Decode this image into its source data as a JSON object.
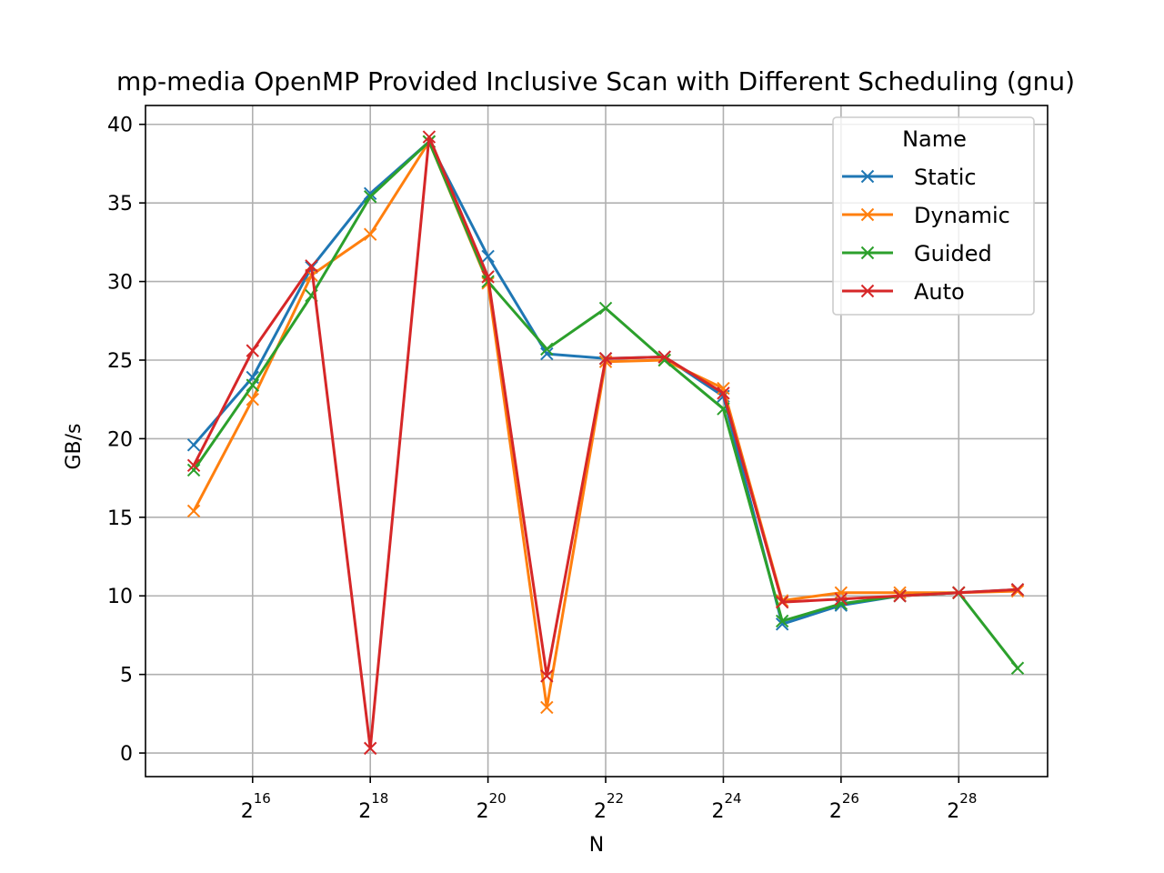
{
  "chart_data": {
    "type": "line",
    "title": "mp-media OpenMP Provided Inclusive Scan with Different Scheduling (gnu)",
    "xlabel": "N",
    "ylabel": "GB/s",
    "x_scale": "log2",
    "x_exponents": [
      15,
      16,
      17,
      18,
      19,
      20,
      21,
      22,
      23,
      24,
      25,
      26,
      27,
      28,
      29
    ],
    "xlim_exponents": [
      14.18,
      29.51
    ],
    "ylim": [
      -1.5,
      41.2
    ],
    "x_ticks": [
      {
        "base": "2",
        "exp": "16",
        "value": 16
      },
      {
        "base": "2",
        "exp": "18",
        "value": 18
      },
      {
        "base": "2",
        "exp": "20",
        "value": 20
      },
      {
        "base": "2",
        "exp": "22",
        "value": 22
      },
      {
        "base": "2",
        "exp": "24",
        "value": 24
      },
      {
        "base": "2",
        "exp": "26",
        "value": 26
      },
      {
        "base": "2",
        "exp": "28",
        "value": 28
      }
    ],
    "y_ticks": [
      {
        "label": "0",
        "value": 0
      },
      {
        "label": "5",
        "value": 5
      },
      {
        "label": "10",
        "value": 10
      },
      {
        "label": "15",
        "value": 15
      },
      {
        "label": "20",
        "value": 20
      },
      {
        "label": "25",
        "value": 25
      },
      {
        "label": "30",
        "value": 30
      },
      {
        "label": "35",
        "value": 35
      },
      {
        "label": "40",
        "value": 40
      }
    ],
    "grid": true,
    "marker": "x",
    "legend": {
      "title": "Name",
      "placement": "top-right"
    },
    "series": [
      {
        "name": "Static",
        "color": "#1f77b4",
        "values": [
          19.6,
          23.9,
          30.9,
          35.6,
          38.9,
          31.6,
          25.4,
          25.1,
          25.2,
          22.7,
          8.2,
          9.4,
          10.0,
          10.2,
          10.4
        ]
      },
      {
        "name": "Dynamic",
        "color": "#ff7f0e",
        "values": [
          15.4,
          22.5,
          30.4,
          33.0,
          38.9,
          29.9,
          2.9,
          24.9,
          25.0,
          23.2,
          9.7,
          10.2,
          10.2,
          10.2,
          10.3
        ]
      },
      {
        "name": "Guided",
        "color": "#2ca02c",
        "values": [
          18.0,
          23.4,
          29.1,
          35.4,
          38.9,
          30.0,
          25.7,
          28.3,
          25.0,
          21.9,
          8.4,
          9.5,
          10.0,
          10.2,
          5.4
        ]
      },
      {
        "name": "Auto",
        "color": "#d62728",
        "values": [
          18.3,
          25.6,
          31.0,
          0.3,
          39.2,
          30.3,
          4.9,
          25.1,
          25.2,
          22.9,
          9.6,
          9.8,
          10.0,
          10.2,
          10.4
        ]
      }
    ]
  }
}
